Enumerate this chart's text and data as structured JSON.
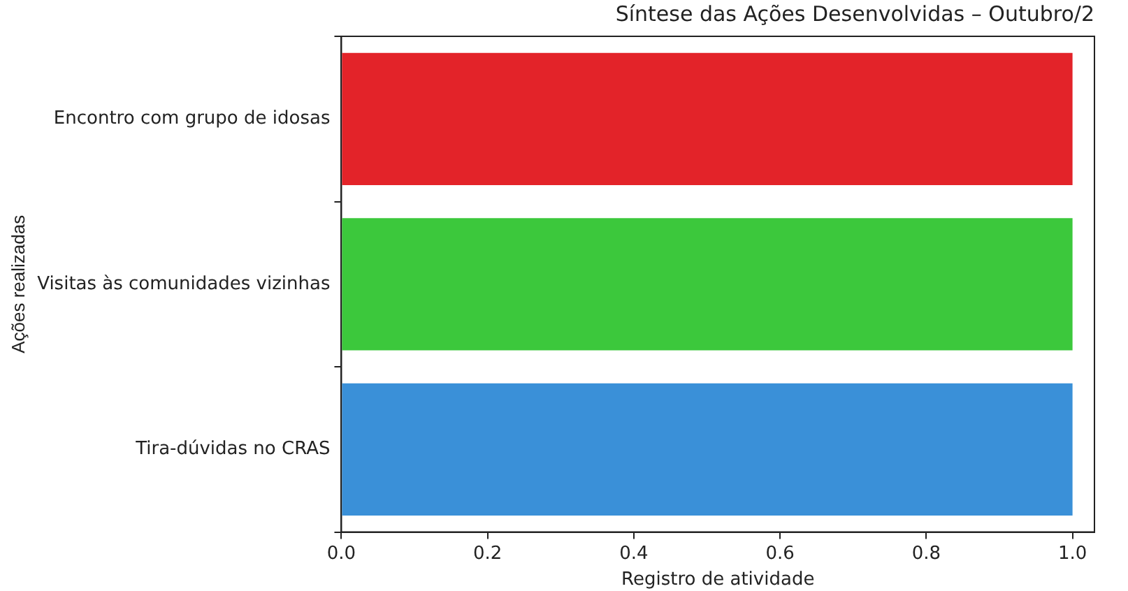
{
  "chart_data": {
    "type": "bar",
    "orientation": "horizontal",
    "title": "Síntese das Ações Desenvolvidas – Outubro/2",
    "xlabel": "Registro de atividade",
    "ylabel": "Ações realizadas",
    "categories": [
      "Encontro com grupo de idosas",
      "Visitas às comunidades vizinhas",
      "Tira-dúvidas no CRAS"
    ],
    "values": [
      1,
      1,
      1
    ],
    "colors": [
      "#e32329",
      "#3cc83c",
      "#3a90d8"
    ],
    "xlim": [
      0,
      1.03
    ],
    "xticks": [
      {
        "value": 0,
        "label": "0.0"
      },
      {
        "value": 0.2,
        "label": "0.2"
      },
      {
        "value": 0.4,
        "label": "0.4"
      },
      {
        "value": 0.6,
        "label": "0.6"
      },
      {
        "value": 0.8,
        "label": "0.8"
      },
      {
        "value": 1,
        "label": "1.0"
      }
    ],
    "grid": false,
    "legend": false
  }
}
